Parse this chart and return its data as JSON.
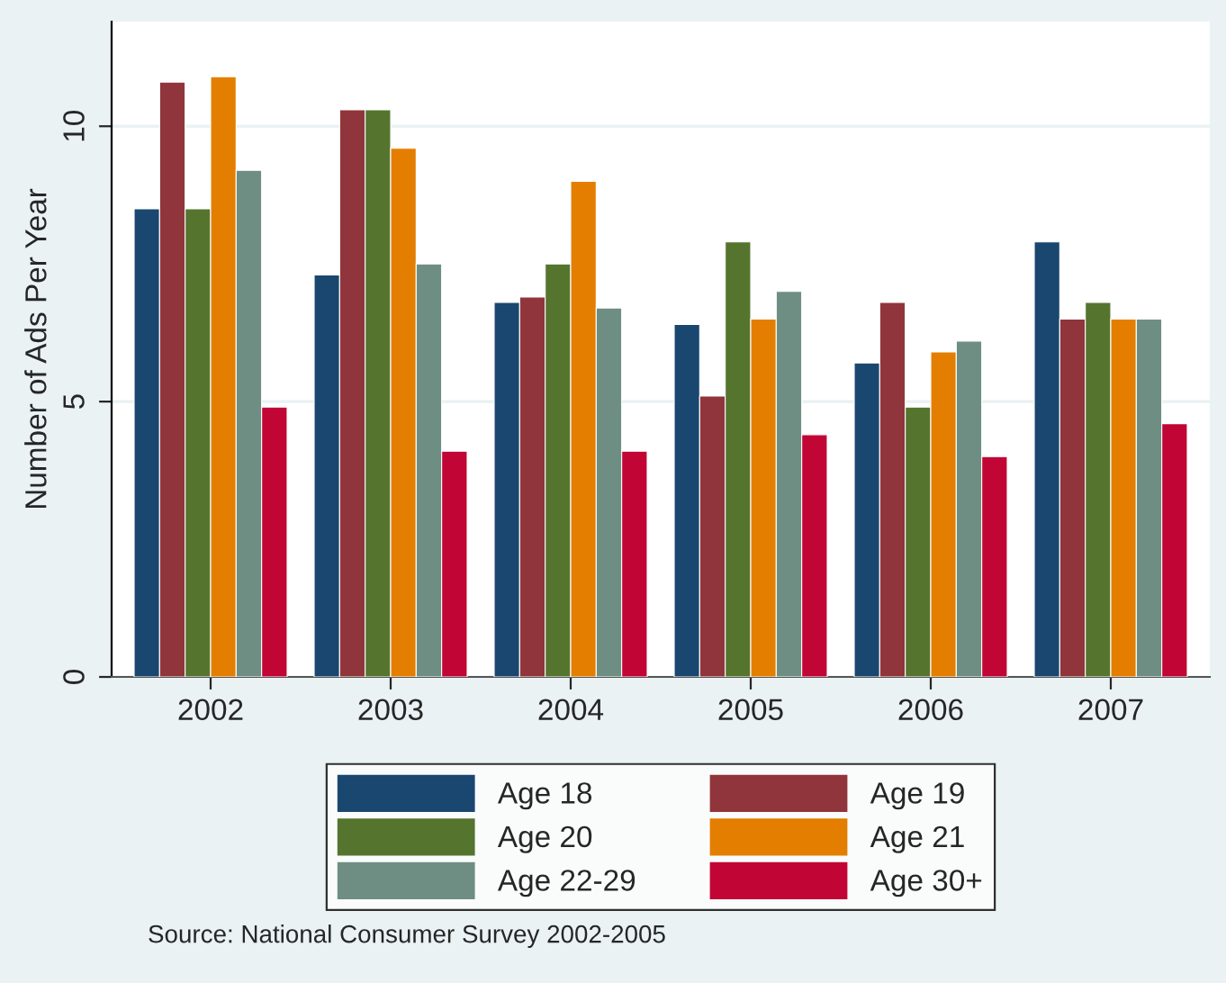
{
  "chart_data": {
    "type": "bar",
    "ylabel": "Number of Ads Per Year",
    "categories": [
      "2002",
      "2003",
      "2004",
      "2005",
      "2006",
      "2007"
    ],
    "series": [
      {
        "name": "Age 18",
        "color": "#1a476f",
        "values": [
          8.5,
          7.3,
          6.8,
          6.4,
          5.7,
          7.9
        ]
      },
      {
        "name": "Age 19",
        "color": "#90353b",
        "values": [
          10.8,
          10.3,
          6.9,
          5.1,
          6.8,
          6.5
        ]
      },
      {
        "name": "Age 20",
        "color": "#55752f",
        "values": [
          8.5,
          10.3,
          7.5,
          7.9,
          4.9,
          6.8
        ]
      },
      {
        "name": "Age 21",
        "color": "#e37e00",
        "values": [
          10.9,
          9.6,
          9.0,
          6.5,
          5.9,
          6.5
        ]
      },
      {
        "name": "Age 22-29",
        "color": "#6e8e84",
        "values": [
          9.2,
          7.5,
          6.7,
          7.0,
          6.1,
          6.5
        ]
      },
      {
        "name": "Age 30+",
        "color": "#c10534",
        "values": [
          4.9,
          4.1,
          4.1,
          4.4,
          4.0,
          4.6
        ]
      }
    ],
    "ylim": [
      0,
      11.9
    ],
    "yticks": [
      0,
      5,
      10
    ],
    "grid": "y",
    "legend": "bottom",
    "annotations": [
      "Source: National Consumer Survey 2002-2005"
    ]
  }
}
